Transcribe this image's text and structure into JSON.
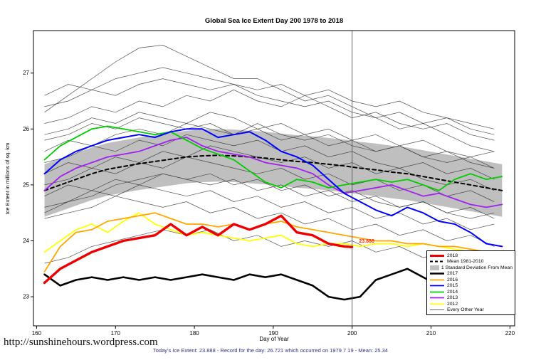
{
  "footer": {
    "url": "http://sunshinehours.wordpress.com",
    "caption": "Today's Ice Extent: 23.888  - Record for the day: 26.721 which occurred on 1979 7 19  - Mean: 25.34"
  },
  "chart_data": {
    "type": "line",
    "title": "Global Sea Ice Extent Day 200 1978 to 2018",
    "xlabel": "Day of Year",
    "ylabel": "Ice Extent in millions of sq. km",
    "xlim": [
      159.6,
      220.6
    ],
    "ylim": [
      22.48,
      27.76
    ],
    "xticks": [
      160,
      170,
      180,
      190,
      200,
      210,
      220
    ],
    "yticks": [
      23,
      24,
      25,
      26,
      27
    ],
    "grid": false,
    "legend_position": "bottom-right",
    "vline_x": 200,
    "annotation": {
      "text": "23.888",
      "x": 200.6,
      "y": 23.97,
      "color": "#ff2a00"
    },
    "x_main": [
      161,
      163,
      165,
      167,
      169,
      171,
      173,
      175,
      177,
      179,
      181,
      183,
      185,
      187,
      189,
      191,
      193,
      195,
      197,
      199,
      201,
      203,
      205,
      207,
      209,
      211,
      213,
      215,
      217,
      219
    ],
    "band": {
      "color": "#bfbfbf",
      "upper": [
        25.37,
        25.47,
        25.57,
        25.67,
        25.75,
        25.8,
        25.85,
        25.89,
        25.93,
        25.97,
        25.99,
        26.0,
        25.99,
        25.97,
        25.95,
        25.92,
        25.89,
        25.87,
        25.84,
        25.81,
        25.77,
        25.74,
        25.7,
        25.67,
        25.62,
        25.57,
        25.52,
        25.47,
        25.42,
        25.37
      ],
      "lower": [
        24.43,
        24.53,
        24.63,
        24.73,
        24.81,
        24.86,
        24.91,
        24.95,
        24.99,
        25.03,
        25.05,
        25.06,
        25.05,
        25.03,
        25.01,
        24.98,
        24.95,
        24.93,
        24.9,
        24.87,
        24.83,
        24.8,
        24.76,
        24.73,
        24.68,
        24.63,
        24.58,
        24.53,
        24.48,
        24.43
      ]
    },
    "series": [
      {
        "name": "Mean 1981-2010",
        "color": "#000000",
        "width": 2,
        "dash": "5 4",
        "y": [
          24.9,
          25.0,
          25.1,
          25.2,
          25.28,
          25.33,
          25.38,
          25.42,
          25.46,
          25.5,
          25.52,
          25.53,
          25.52,
          25.5,
          25.48,
          25.45,
          25.42,
          25.4,
          25.37,
          25.34,
          25.3,
          25.27,
          25.23,
          25.2,
          25.15,
          25.1,
          25.05,
          25.0,
          24.95,
          24.9
        ]
      },
      {
        "name": "2012",
        "color": "#ffff00",
        "width": 1.8,
        "y": [
          23.8,
          24.0,
          24.2,
          24.3,
          24.15,
          24.35,
          24.5,
          24.3,
          24.2,
          24.1,
          24.15,
          24.1,
          24.05,
          24.0,
          24.05,
          24.1,
          23.95,
          23.9,
          23.95,
          23.95,
          23.9,
          23.95,
          23.95,
          23.9,
          23.95,
          23.9,
          23.85,
          23.8,
          23.8,
          23.75
        ]
      },
      {
        "name": "2013",
        "color": "#a020f0",
        "width": 1.8,
        "y": [
          24.9,
          25.15,
          25.3,
          25.4,
          25.5,
          25.55,
          25.6,
          25.7,
          25.8,
          25.85,
          25.7,
          25.6,
          25.55,
          25.5,
          25.4,
          25.35,
          25.3,
          25.2,
          25.0,
          24.85,
          24.9,
          24.95,
          25.0,
          24.9,
          24.8,
          24.85,
          24.75,
          24.65,
          24.6,
          24.65
        ]
      },
      {
        "name": "2014",
        "color": "#00cc00",
        "width": 1.8,
        "y": [
          25.45,
          25.7,
          25.85,
          26.0,
          26.05,
          26.0,
          25.95,
          25.9,
          25.95,
          25.8,
          25.65,
          25.55,
          25.45,
          25.25,
          25.05,
          24.95,
          25.1,
          25.05,
          24.95,
          25.0,
          25.05,
          25.1,
          25.05,
          25.1,
          25.0,
          24.9,
          25.1,
          25.2,
          25.1,
          25.15
        ]
      },
      {
        "name": "2015",
        "color": "#0000ff",
        "width": 2,
        "y": [
          25.2,
          25.45,
          25.6,
          25.7,
          25.8,
          25.85,
          25.9,
          25.85,
          25.95,
          26.0,
          26.0,
          25.85,
          25.9,
          25.95,
          25.8,
          25.6,
          25.5,
          25.35,
          25.1,
          24.85,
          24.7,
          24.55,
          24.45,
          24.6,
          24.5,
          24.35,
          24.3,
          24.15,
          23.95,
          23.9
        ]
      },
      {
        "name": "2016",
        "color": "#ffa500",
        "width": 1.8,
        "y": [
          23.45,
          23.9,
          24.15,
          24.2,
          24.35,
          24.4,
          24.45,
          24.5,
          24.4,
          24.3,
          24.3,
          24.25,
          24.3,
          24.2,
          24.3,
          24.35,
          24.25,
          24.2,
          24.15,
          24.1,
          24.05,
          24.0,
          24.0,
          23.95,
          23.95,
          23.9,
          23.9,
          23.85,
          23.8,
          23.8
        ]
      },
      {
        "name": "2017",
        "color": "#000000",
        "width": 2.6,
        "y": [
          23.4,
          23.2,
          23.3,
          23.35,
          23.3,
          23.35,
          23.3,
          23.35,
          23.3,
          23.35,
          23.4,
          23.35,
          23.3,
          23.4,
          23.35,
          23.4,
          23.3,
          23.2,
          23.0,
          22.95,
          23.0,
          23.3,
          23.4,
          23.5,
          23.35,
          23.2,
          23.3,
          23.35,
          23.1,
          22.9
        ]
      },
      {
        "name": "2018",
        "color": "#ee0000",
        "width": 3.4,
        "x": [
          161,
          163,
          165,
          167,
          169,
          171,
          173,
          175,
          177,
          179,
          181,
          183,
          185,
          187,
          189,
          191,
          193,
          195,
          197,
          199,
          200
        ],
        "y": [
          23.25,
          23.5,
          23.65,
          23.8,
          23.9,
          24.0,
          24.05,
          24.1,
          24.3,
          24.1,
          24.25,
          24.1,
          24.3,
          24.2,
          24.3,
          24.45,
          24.15,
          24.1,
          23.95,
          23.9,
          23.888
        ]
      }
    ],
    "background": {
      "label": "Every Other Year",
      "color": "#333333",
      "width": 0.7,
      "x": [
        161,
        164,
        167,
        170,
        173,
        176,
        179,
        182,
        185,
        188,
        191,
        194,
        197,
        200,
        203,
        206,
        209,
        212,
        215,
        218
      ],
      "series": [
        [
          26.3,
          26.6,
          26.9,
          27.2,
          27.45,
          27.5,
          27.3,
          27.1,
          26.9,
          26.9,
          26.7,
          26.5,
          26.6,
          26.4,
          26.2,
          26.0,
          26.1,
          25.9,
          25.7,
          25.6
        ],
        [
          26.1,
          26.2,
          26.4,
          26.3,
          26.5,
          26.4,
          26.6,
          26.5,
          26.7,
          26.5,
          26.4,
          26.6,
          26.4,
          26.2,
          26.3,
          26.1,
          26.0,
          26.1,
          25.9,
          25.8
        ],
        [
          25.9,
          26.0,
          26.2,
          26.1,
          26.3,
          26.2,
          26.1,
          26.3,
          26.2,
          26.0,
          26.1,
          25.9,
          26.0,
          25.8,
          25.9,
          25.7,
          25.8,
          25.6,
          25.5,
          25.6
        ],
        [
          25.6,
          25.8,
          25.7,
          25.9,
          26.0,
          25.9,
          26.1,
          26.0,
          25.9,
          26.1,
          25.9,
          25.8,
          25.9,
          25.7,
          25.6,
          25.7,
          25.5,
          25.4,
          25.5,
          25.3
        ],
        [
          25.4,
          25.5,
          25.7,
          25.6,
          25.8,
          25.7,
          25.9,
          25.8,
          25.7,
          25.8,
          25.6,
          25.7,
          25.5,
          25.6,
          25.4,
          25.3,
          25.4,
          25.2,
          25.3,
          25.1
        ],
        [
          25.2,
          25.4,
          25.3,
          25.5,
          25.4,
          25.6,
          25.5,
          25.7,
          25.6,
          25.5,
          25.4,
          25.5,
          25.3,
          25.4,
          25.2,
          25.3,
          25.1,
          25.0,
          25.1,
          24.9
        ],
        [
          25.0,
          25.1,
          25.3,
          25.2,
          25.4,
          25.3,
          25.5,
          25.4,
          25.3,
          25.2,
          25.3,
          25.1,
          25.2,
          25.0,
          25.1,
          24.9,
          25.0,
          24.8,
          24.9,
          24.7
        ],
        [
          24.8,
          25.0,
          24.9,
          25.1,
          25.0,
          25.2,
          25.1,
          25.0,
          25.1,
          24.9,
          25.0,
          24.8,
          24.9,
          24.7,
          24.8,
          24.6,
          24.7,
          24.5,
          24.6,
          24.4
        ],
        [
          24.6,
          24.7,
          24.9,
          24.8,
          25.0,
          24.9,
          24.8,
          24.9,
          24.7,
          24.8,
          24.6,
          24.7,
          24.5,
          24.6,
          24.4,
          24.5,
          24.3,
          24.4,
          24.2,
          24.3
        ],
        [
          24.4,
          24.5,
          24.6,
          24.8,
          24.7,
          24.6,
          24.7,
          24.5,
          24.6,
          24.4,
          24.5,
          24.3,
          24.4,
          24.2,
          24.3,
          24.1,
          24.2,
          24.0,
          24.1,
          23.9
        ],
        [
          26.4,
          26.5,
          26.7,
          26.6,
          26.8,
          26.9,
          26.8,
          26.7,
          26.8,
          26.6,
          26.5,
          26.4,
          26.5,
          26.3,
          26.2,
          26.3,
          26.1,
          26.2,
          26.0,
          25.9
        ],
        [
          25.8,
          25.9,
          26.1,
          26.0,
          26.2,
          26.1,
          26.0,
          26.1,
          25.9,
          26.0,
          25.8,
          25.9,
          25.7,
          25.8,
          25.6,
          25.7,
          25.5,
          25.6,
          25.4,
          25.3
        ],
        [
          26.6,
          26.8,
          26.7,
          26.9,
          27.0,
          27.1,
          27.0,
          26.9,
          26.8,
          26.7,
          26.8,
          26.6,
          26.7,
          26.5,
          26.4,
          26.5,
          26.3,
          26.2,
          26.1,
          26.0
        ],
        [
          24.5,
          24.7,
          24.8,
          25.0,
          25.1,
          25.2,
          25.1,
          25.2,
          25.0,
          25.1,
          24.9,
          25.0,
          24.8,
          24.9,
          24.7,
          24.6,
          24.7,
          24.5,
          24.4,
          24.5
        ],
        [
          23.6,
          23.7,
          23.9,
          24.0,
          24.1,
          24.2,
          24.1,
          24.2,
          24.0,
          24.1,
          23.9,
          24.0,
          23.9,
          24.0,
          23.8,
          23.9,
          23.7,
          23.8,
          23.6,
          23.7
        ]
      ]
    },
    "legend": [
      {
        "label": "2018",
        "color": "#ee0000",
        "width": 3,
        "type": "line"
      },
      {
        "label": "Mean 1981-2010",
        "color": "#000000",
        "width": 2,
        "dash": "4 3",
        "type": "line"
      },
      {
        "label": "1 Standard Deviation From Mean",
        "color": "#bfbfbf",
        "type": "band"
      },
      {
        "label": "2017",
        "color": "#000000",
        "width": 2.4,
        "type": "line"
      },
      {
        "label": "2016",
        "color": "#ffa500",
        "width": 1.8,
        "type": "line"
      },
      {
        "label": "2015",
        "color": "#0000ff",
        "width": 1.8,
        "type": "line"
      },
      {
        "label": "2014",
        "color": "#00cc00",
        "width": 1.8,
        "type": "line"
      },
      {
        "label": "2013",
        "color": "#a020f0",
        "width": 1.8,
        "type": "line"
      },
      {
        "label": "2012",
        "color": "#ffff00",
        "width": 1.8,
        "type": "line"
      },
      {
        "label": "Every Other Year",
        "color": "#333333",
        "width": 0.8,
        "type": "line"
      }
    ]
  }
}
